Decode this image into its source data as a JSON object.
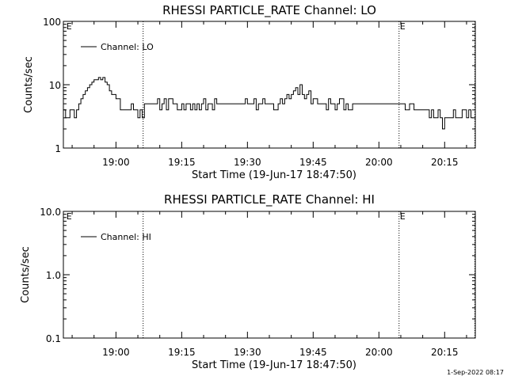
{
  "chart_data": [
    {
      "type": "line",
      "title": "RHESSI PARTICLE_RATE Channel: LO",
      "xlabel": "Start Time (19-Jun-17 18:47:50)",
      "ylabel": "Counts/sec",
      "yscale": "log",
      "ylim": [
        1,
        100
      ],
      "yticks": [
        1,
        10,
        100
      ],
      "ytick_labels": [
        "1",
        "10",
        "100"
      ],
      "xlim_minutes": [
        -12,
        82
      ],
      "xticks_minutes": [
        0,
        15,
        30,
        45,
        60,
        75
      ],
      "xtick_labels": [
        "19:00",
        "19:15",
        "19:30",
        "19:45",
        "20:00",
        "20:15"
      ],
      "vertical_lines_minutes": [
        6.2,
        64.6,
        81.9
      ],
      "flags": [
        {
          "text": "E",
          "minute": -11.5
        },
        {
          "text": "E",
          "minute": 64.6
        }
      ],
      "legend": {
        "label": "Channel: LO",
        "position": "top-left"
      },
      "series": [
        {
          "name": "Channel: LO",
          "color": "#000000",
          "x_minutes": [
            -12,
            -11.5,
            -11,
            -10.5,
            -10,
            -9.5,
            -9,
            -8.5,
            -8,
            -7.5,
            -7,
            -6.5,
            -6,
            -5.5,
            -5,
            -4.5,
            -4,
            -3.5,
            -3,
            -2.5,
            -2,
            -1.5,
            -1,
            0,
            1,
            2,
            3,
            3.5,
            4,
            4.5,
            5,
            5.5,
            6,
            6.5,
            7,
            7.5,
            8,
            8.5,
            9,
            9.5,
            10,
            10.5,
            11,
            11.5,
            12,
            13,
            14,
            14.5,
            15,
            15.5,
            16,
            17,
            17.5,
            18,
            18.5,
            19,
            19.5,
            20,
            20.5,
            21,
            21.5,
            22,
            22.5,
            23,
            24,
            25,
            26,
            27,
            28,
            29,
            29.5,
            30,
            31,
            31.5,
            32,
            32.5,
            33,
            33.5,
            34,
            35,
            36,
            37,
            37.5,
            38,
            38.5,
            39,
            39.5,
            40,
            40.5,
            41,
            41.5,
            42,
            42.5,
            43,
            43.5,
            44,
            44.5,
            45,
            46,
            47,
            47.5,
            48,
            48.5,
            49,
            49.5,
            50,
            50.5,
            51,
            52,
            52.5,
            53,
            54,
            55,
            56,
            57,
            58,
            59,
            60,
            61,
            62,
            63,
            64,
            64.5,
            65,
            65.5,
            66,
            67,
            68,
            69,
            70,
            70.5,
            71,
            71.5,
            72,
            72.5,
            73,
            73.5,
            74,
            74.5,
            75,
            75.5,
            76,
            77,
            77.5,
            78,
            78.5,
            79,
            79.5,
            80,
            80.5,
            81
          ],
          "y": [
            4,
            3,
            3,
            4,
            4,
            3,
            4,
            5,
            6,
            7,
            8,
            9,
            10,
            11,
            12,
            12,
            13,
            12,
            13,
            11,
            10,
            8,
            7,
            6,
            4,
            4,
            4,
            5,
            4,
            4,
            3,
            4,
            3,
            5,
            5,
            5,
            5,
            5,
            5,
            6,
            4,
            5,
            6,
            4,
            6,
            5,
            4,
            4,
            5,
            4,
            5,
            4,
            5,
            4,
            5,
            4,
            5,
            6,
            4,
            5,
            5,
            4,
            6,
            5,
            5,
            5,
            5,
            5,
            5,
            5,
            6,
            5,
            5,
            6,
            4,
            5,
            5,
            6,
            5,
            5,
            4,
            5,
            6,
            5,
            6,
            7,
            6,
            7,
            8,
            9,
            7,
            10,
            7,
            6,
            7,
            8,
            5,
            6,
            5,
            5,
            5,
            4,
            6,
            5,
            5,
            4,
            5,
            6,
            4,
            5,
            4,
            5,
            5,
            5,
            5,
            5,
            5,
            5,
            5,
            5,
            5,
            5,
            5,
            5,
            5,
            4,
            5,
            4,
            4,
            4,
            4,
            4,
            3,
            4,
            3,
            3,
            4,
            3,
            2,
            3,
            3,
            3,
            4,
            3,
            3,
            3,
            4,
            4,
            3,
            4,
            3
          ]
        }
      ]
    },
    {
      "type": "line",
      "title": "RHESSI PARTICLE_RATE Channel: HI",
      "xlabel": "Start Time (19-Jun-17 18:47:50)",
      "ylabel": "Counts/sec",
      "yscale": "log",
      "ylim": [
        0.1,
        10
      ],
      "yticks": [
        0.1,
        1,
        10
      ],
      "ytick_labels": [
        "0.1",
        "1.0",
        "10.0"
      ],
      "xlim_minutes": [
        -12,
        82
      ],
      "xticks_minutes": [
        0,
        15,
        30,
        45,
        60,
        75
      ],
      "xtick_labels": [
        "19:00",
        "19:15",
        "19:30",
        "19:45",
        "20:00",
        "20:15"
      ],
      "vertical_lines_minutes": [
        6.2,
        64.6,
        81.9
      ],
      "flags": [
        {
          "text": "E",
          "minute": -11.5
        },
        {
          "text": "E",
          "minute": 64.6
        }
      ],
      "legend": {
        "label": "Channel: HI",
        "position": "top-left"
      },
      "series": [
        {
          "name": "Channel: HI",
          "color": "#000000",
          "x_minutes": [],
          "y": []
        }
      ]
    }
  ],
  "footer": {
    "timestamp": "1-Sep-2022 08:17"
  }
}
